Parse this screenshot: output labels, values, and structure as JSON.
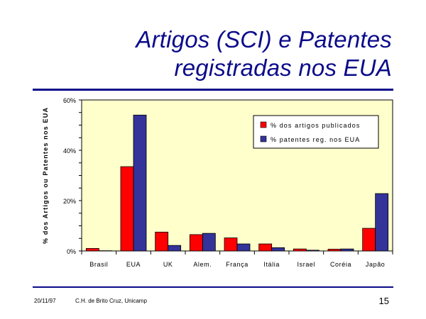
{
  "slide": {
    "title_line1": "Artigos (SCI) e Patentes",
    "title_line2": "registradas nos EUA",
    "footer_date": "20/11/97",
    "footer_author": "C.H. de Brito Cruz, Unicamp",
    "page_number": "15"
  },
  "colors": {
    "title": "#0b0b8a",
    "plot_bg": "#ffffcc",
    "series_articles": "#ff0000",
    "series_patents": "#333399"
  },
  "chart_data": {
    "type": "bar",
    "title": "",
    "xlabel": "",
    "ylabel": "% dos Artigos ou Patentes nos EUA",
    "ylim": [
      0,
      60
    ],
    "yticks": [
      0,
      20,
      40,
      60
    ],
    "ytick_labels": [
      "0%",
      "20%",
      "40%",
      "60%"
    ],
    "grid": false,
    "legend_position": "top-right",
    "categories": [
      "Brasil",
      "EUA",
      "UK",
      "Alem.",
      "França",
      "Itália",
      "Israel",
      "Coréia",
      "Japão"
    ],
    "series": [
      {
        "name": "% dos artigos publicados",
        "values": [
          1,
          33.5,
          7.5,
          6.5,
          5.2,
          2.8,
          0.8,
          0.7,
          9
        ]
      },
      {
        "name": "% patentes reg. nos EUA",
        "values": [
          0.1,
          54,
          2.2,
          7,
          2.8,
          1.3,
          0.3,
          0.8,
          22.8
        ]
      }
    ]
  }
}
